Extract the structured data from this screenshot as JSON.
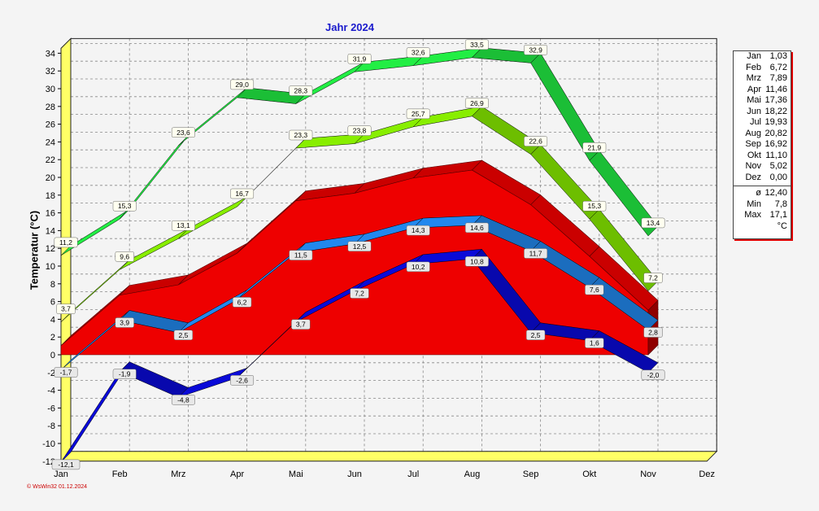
{
  "chart_data": {
    "type": "line",
    "title": "Jahr  2024",
    "ylabel": "Temperatur  (°C)",
    "categories": [
      "Jan",
      "Feb",
      "Mrz",
      "Apr",
      "Mai",
      "Jun",
      "Jul",
      "Aug",
      "Sep",
      "Okt",
      "Nov",
      "Dez"
    ],
    "ylim": [
      -12,
      34
    ],
    "yticks": [
      -12,
      -10,
      -8,
      -6,
      -4,
      -2,
      0,
      2,
      4,
      6,
      8,
      10,
      12,
      14,
      16,
      18,
      20,
      22,
      24,
      26,
      28,
      30,
      32,
      34
    ],
    "grid": true,
    "series": [
      {
        "name": "max",
        "color": "#22ee44",
        "values": [
          11.2,
          15.3,
          23.6,
          29.0,
          28.3,
          31.9,
          32.6,
          33.5,
          32.9,
          21.9,
          13.4,
          null
        ],
        "labels": [
          "11,2",
          "15,3",
          "23,6",
          "29,0",
          "28,3",
          "31,9",
          "32,6",
          "33,5",
          "32,9",
          "21,9",
          "13,4",
          ""
        ]
      },
      {
        "name": "mean_max",
        "color": "#88ee00",
        "values": [
          3.7,
          9.6,
          13.1,
          16.7,
          23.3,
          23.8,
          25.7,
          26.9,
          22.6,
          15.3,
          7.2,
          null
        ],
        "labels": [
          "3,7",
          "9,6",
          "13,1",
          "16,7",
          "23,3",
          "23,8",
          "25,7",
          "26,9",
          "22,6",
          "15,3",
          "7,2",
          ""
        ]
      },
      {
        "name": "mean",
        "color": "#ee0000",
        "values": [
          1.03,
          6.72,
          7.89,
          11.46,
          17.36,
          18.22,
          19.93,
          20.82,
          16.92,
          11.1,
          5.02,
          null
        ]
      },
      {
        "name": "mean_min",
        "color": "#2288ee",
        "values": [
          -1.7,
          3.9,
          2.5,
          6.2,
          11.5,
          12.5,
          14.3,
          14.6,
          11.7,
          7.6,
          2.8,
          null
        ],
        "labels": [
          "-1,7",
          "3,9",
          "2,5",
          "6,2",
          "11,5",
          "12,5",
          "14,3",
          "14,6",
          "11,7",
          "7,6",
          "2,8",
          ""
        ]
      },
      {
        "name": "min",
        "color": "#0a0ad8",
        "values": [
          -12.1,
          -1.9,
          -4.8,
          -2.6,
          3.7,
          7.2,
          10.2,
          10.8,
          2.5,
          1.6,
          -2.0,
          null
        ],
        "labels": [
          "-12,1",
          "-1,9",
          "-4,8",
          "-2,6",
          "3,7",
          "7,2",
          "10,2",
          "10,8",
          "2,5",
          "1,6",
          "-2,0",
          ""
        ]
      }
    ]
  },
  "legend": {
    "rows": [
      {
        "k": "Jan",
        "v": "1,03"
      },
      {
        "k": "Feb",
        "v": "6,72"
      },
      {
        "k": "Mrz",
        "v": "7,89"
      },
      {
        "k": "Apr",
        "v": "11,46"
      },
      {
        "k": "Mai",
        "v": "17,36"
      },
      {
        "k": "Jun",
        "v": "18,22"
      },
      {
        "k": "Jul",
        "v": "19,93"
      },
      {
        "k": "Aug",
        "v": "20,82"
      },
      {
        "k": "Sep",
        "v": "16,92"
      },
      {
        "k": "Okt",
        "v": "11,10"
      },
      {
        "k": "Nov",
        "v": "5,02"
      },
      {
        "k": "Dez",
        "v": "0,00"
      }
    ],
    "stats": [
      {
        "k": "ø",
        "v": "12,40"
      },
      {
        "k": "Min",
        "v": "7,8"
      },
      {
        "k": "Max",
        "v": "17,1"
      }
    ],
    "unit": "°C"
  },
  "footer": "© WsWin32  01.12.2024"
}
